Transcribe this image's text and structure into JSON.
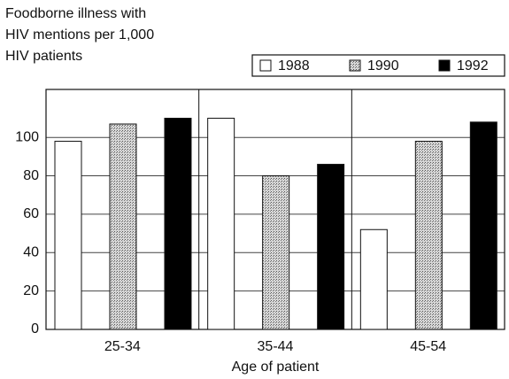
{
  "chart_data": {
    "type": "bar",
    "title": "Foodborne illness with HIV mentions per 1,000 HIV patients",
    "x_label": "Age of patient",
    "categories": [
      "25-34",
      "35-44",
      "45-54"
    ],
    "series": [
      {
        "name": "1988",
        "color": "#ffffff",
        "values": [
          98,
          110,
          52
        ]
      },
      {
        "name": "1990",
        "color": "#b0b0b0",
        "values": [
          107,
          80,
          98
        ]
      },
      {
        "name": "1992",
        "color": "#000000",
        "values": [
          110,
          86,
          108
        ]
      }
    ],
    "ylim": [
      0,
      125
    ],
    "yticks": [
      0,
      20,
      40,
      60,
      80,
      100
    ],
    "grid": true,
    "legend": "top-right"
  }
}
